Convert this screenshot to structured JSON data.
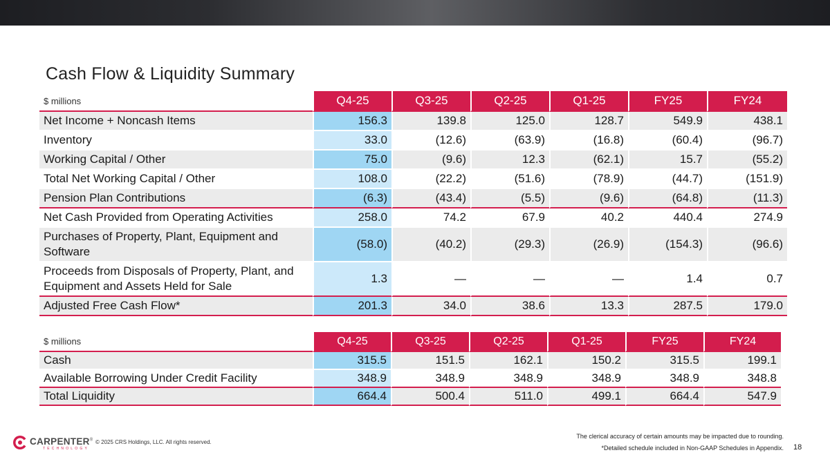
{
  "title": "Cash Flow & Liquidity Summary",
  "colors": {
    "accent": "#d31d4d",
    "highlight_light": "#cce9fa",
    "highlight_dark": "#9fd6f3",
    "row_shade": "#ebebeb"
  },
  "cash_flow": {
    "unit_label": "$ millions",
    "columns": [
      "Q4-25",
      "Q3-25",
      "Q2-25",
      "Q1-25",
      "FY25",
      "FY24"
    ],
    "rows": [
      {
        "label": "Net Income + Noncash Items",
        "values": [
          "156.3",
          "139.8",
          "125.0",
          "128.7",
          "549.9",
          "438.1"
        ]
      },
      {
        "label": "Inventory",
        "values": [
          "33.0",
          "(12.6)",
          "(63.9)",
          "(16.8)",
          "(60.4)",
          "(96.7)"
        ]
      },
      {
        "label": "Working Capital / Other",
        "values": [
          "75.0",
          "(9.6)",
          "12.3",
          "(62.1)",
          "15.7",
          "(55.2)"
        ]
      },
      {
        "label": "Total Net Working Capital / Other",
        "values": [
          "108.0",
          "(22.2)",
          "(51.6)",
          "(78.9)",
          "(44.7)",
          "(151.9)"
        ]
      },
      {
        "label": "Pension Plan Contributions",
        "values": [
          "(6.3)",
          "(43.4)",
          "(5.5)",
          "(9.6)",
          "(64.8)",
          "(11.3)"
        ]
      },
      {
        "label": "Net Cash Provided from Operating Activities",
        "values": [
          "258.0",
          "74.2",
          "67.9",
          "40.2",
          "440.4",
          "274.9"
        ]
      },
      {
        "label": "Purchases of Property, Plant, Equipment and Software",
        "values": [
          "(58.0)",
          "(40.2)",
          "(29.3)",
          "(26.9)",
          "(154.3)",
          "(96.6)"
        ]
      },
      {
        "label": "Proceeds from Disposals of Property, Plant, and Equipment and Assets Held for Sale",
        "values": [
          "1.3",
          "—",
          "—",
          "—",
          "1.4",
          "0.7"
        ]
      },
      {
        "label": "Adjusted Free Cash Flow*",
        "values": [
          "201.3",
          "34.0",
          "38.6",
          "13.3",
          "287.5",
          "179.0"
        ]
      }
    ]
  },
  "liquidity": {
    "unit_label": "$ millions",
    "columns": [
      "Q4-25",
      "Q3-25",
      "Q2-25",
      "Q1-25",
      "FY25",
      "FY24"
    ],
    "rows": [
      {
        "label": "Cash",
        "values": [
          "315.5",
          "151.5",
          "162.1",
          "150.2",
          "315.5",
          "199.1"
        ]
      },
      {
        "label": "Available Borrowing Under Credit Facility",
        "values": [
          "348.9",
          "348.9",
          "348.9",
          "348.9",
          "348.9",
          "348.8"
        ]
      },
      {
        "label": "Total Liquidity",
        "values": [
          "664.4",
          "500.4",
          "511.0",
          "499.1",
          "664.4",
          "547.9"
        ]
      }
    ]
  },
  "footer": {
    "logo_name": "CARPENTER",
    "logo_trademark": "®",
    "logo_sub": "TECHNOLOGY",
    "copyright": "© 2025 CRS Holdings, LLC. All rights reserved.",
    "note_rounding": "The clerical accuracy of certain amounts may be impacted due to rounding.",
    "note_schedule": "*Detailed schedule included in Non-GAAP Schedules in Appendix.",
    "page_number": "18"
  }
}
